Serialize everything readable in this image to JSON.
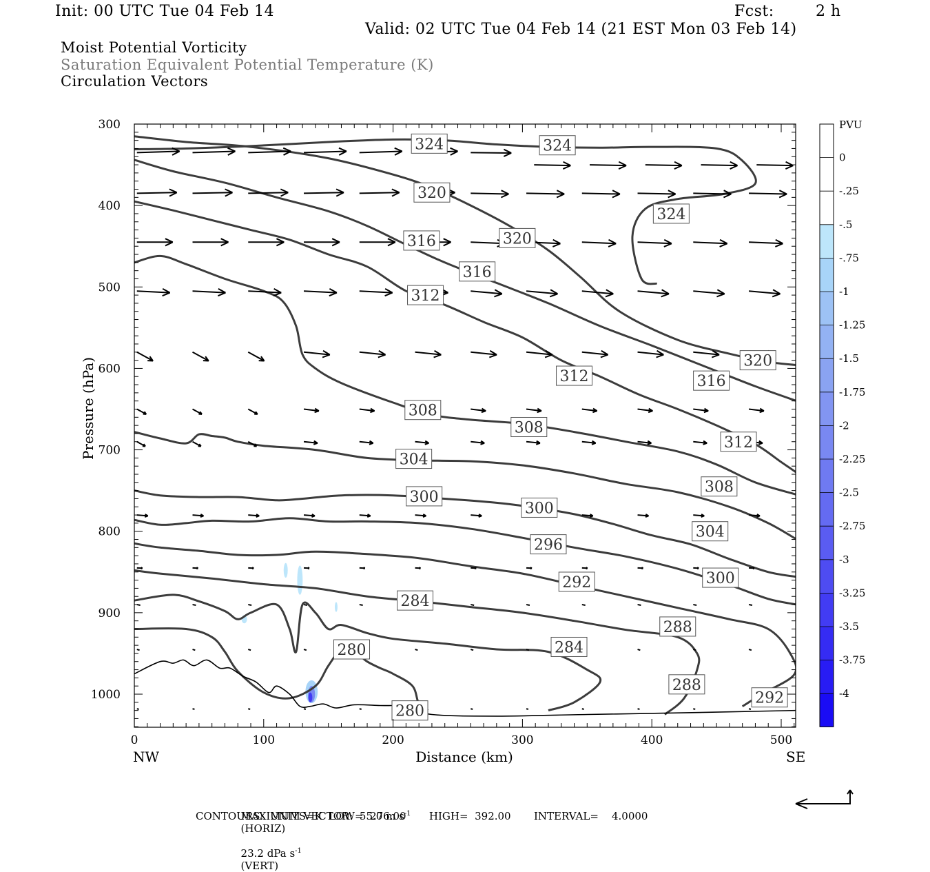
{
  "header": {
    "init": "Init: 00 UTC Tue 04 Feb 14",
    "fcst_label": "Fcst:",
    "fcst_value": "2 h",
    "valid": "Valid: 02 UTC Tue 04 Feb 14 (21 EST Mon 03 Feb 14)"
  },
  "titles": {
    "line1": "Moist Potential Vorticity",
    "line2": "Saturation Equivalent Potential Temperature (K)",
    "line3": "Circulation Vectors",
    "line2_color": "#7a7a7a"
  },
  "chart_data": {
    "type": "line",
    "xlabel": "Distance (km)",
    "ylabel": "Pressure (hPa)",
    "xlim": [
      0,
      512
    ],
    "ylim": [
      300,
      1040
    ],
    "y_inverted": true,
    "x_ticks": [
      0,
      100,
      200,
      300,
      400,
      500
    ],
    "y_ticks": [
      300,
      400,
      500,
      600,
      700,
      800,
      900,
      1000
    ],
    "x_end_labels": {
      "left": "NW",
      "right": "SE"
    },
    "contour_color": "#3c3c3c",
    "vector_color": "#000000",
    "contours": [
      {
        "label": "324",
        "points": [
          [
            0,
            331
          ],
          [
            40,
            330
          ],
          [
            90,
            327
          ],
          [
            150,
            322
          ],
          [
            200,
            319
          ],
          [
            240,
            320
          ],
          [
            280,
            325
          ],
          [
            320,
            328
          ],
          [
            360,
            329
          ],
          [
            400,
            328
          ],
          [
            450,
            330
          ],
          [
            470,
            345
          ],
          [
            480,
            373
          ],
          [
            455,
            386
          ],
          [
            420,
            392
          ],
          [
            395,
            404
          ],
          [
            385,
            438
          ],
          [
            392,
            490
          ],
          [
            404,
            496
          ]
        ],
        "labels_at": [
          [
            228,
            324
          ],
          [
            327,
            326
          ],
          [
            415,
            410
          ]
        ]
      },
      {
        "label": "320",
        "points": [
          [
            0,
            315
          ],
          [
            40,
            322
          ],
          [
            90,
            328
          ],
          [
            150,
            342
          ],
          [
            200,
            362
          ],
          [
            230,
            378
          ],
          [
            260,
            400
          ],
          [
            290,
            425
          ],
          [
            320,
            455
          ],
          [
            345,
            488
          ],
          [
            375,
            530
          ],
          [
            420,
            565
          ],
          [
            460,
            582
          ],
          [
            490,
            592
          ],
          [
            512,
            596
          ]
        ],
        "labels_at": [
          [
            230,
            384
          ],
          [
            296,
            440
          ],
          [
            482,
            590
          ]
        ]
      },
      {
        "label": "316",
        "points": [
          [
            0,
            344
          ],
          [
            30,
            358
          ],
          [
            70,
            372
          ],
          [
            110,
            390
          ],
          [
            150,
            407
          ],
          [
            180,
            425
          ],
          [
            210,
            448
          ],
          [
            240,
            470
          ],
          [
            280,
            495
          ],
          [
            320,
            520
          ],
          [
            360,
            548
          ],
          [
            400,
            572
          ],
          [
            440,
            597
          ],
          [
            480,
            622
          ],
          [
            512,
            640
          ]
        ],
        "labels_at": [
          [
            222,
            443
          ],
          [
            265,
            481
          ],
          [
            446,
            615
          ]
        ]
      },
      {
        "label": "312",
        "points": [
          [
            0,
            395
          ],
          [
            30,
            406
          ],
          [
            60,
            418
          ],
          [
            90,
            430
          ],
          [
            120,
            442
          ],
          [
            150,
            460
          ],
          [
            180,
            475
          ],
          [
            210,
            505
          ],
          [
            240,
            522
          ],
          [
            270,
            543
          ],
          [
            300,
            562
          ],
          [
            330,
            590
          ],
          [
            360,
            610
          ],
          [
            390,
            632
          ],
          [
            420,
            650
          ],
          [
            450,
            670
          ],
          [
            480,
            693
          ],
          [
            500,
            715
          ],
          [
            512,
            728
          ]
        ],
        "labels_at": [
          [
            225,
            510
          ],
          [
            340,
            609
          ],
          [
            467,
            690
          ]
        ]
      },
      {
        "label": "308",
        "points": [
          [
            0,
            470
          ],
          [
            20,
            462
          ],
          [
            40,
            472
          ],
          [
            70,
            490
          ],
          [
            100,
            505
          ],
          [
            115,
            518
          ],
          [
            125,
            548
          ],
          [
            130,
            583
          ],
          [
            140,
            600
          ],
          [
            160,
            618
          ],
          [
            200,
            642
          ],
          [
            230,
            657
          ],
          [
            260,
            663
          ],
          [
            300,
            668
          ],
          [
            340,
            678
          ],
          [
            380,
            690
          ],
          [
            420,
            702
          ],
          [
            450,
            718
          ],
          [
            480,
            740
          ],
          [
            512,
            755
          ]
        ],
        "labels_at": [
          [
            223,
            651
          ],
          [
            305,
            672
          ],
          [
            452,
            745
          ]
        ]
      },
      {
        "label": "304",
        "points": [
          [
            0,
            678
          ],
          [
            20,
            686
          ],
          [
            40,
            692
          ],
          [
            50,
            681
          ],
          [
            60,
            683
          ],
          [
            70,
            685
          ],
          [
            80,
            690
          ],
          [
            100,
            695
          ],
          [
            140,
            700
          ],
          [
            180,
            710
          ],
          [
            220,
            713
          ],
          [
            260,
            714
          ],
          [
            300,
            719
          ],
          [
            340,
            729
          ],
          [
            380,
            742
          ],
          [
            420,
            752
          ],
          [
            460,
            770
          ],
          [
            490,
            790
          ],
          [
            512,
            810
          ]
        ],
        "labels_at": [
          [
            216,
            711
          ],
          [
            445,
            800
          ]
        ]
      },
      {
        "label": "300",
        "points": [
          [
            0,
            750
          ],
          [
            20,
            756
          ],
          [
            50,
            758
          ],
          [
            80,
            758
          ],
          [
            110,
            762
          ],
          [
            130,
            760
          ],
          [
            160,
            756
          ],
          [
            200,
            756
          ],
          [
            240,
            760
          ],
          [
            280,
            765
          ],
          [
            310,
            771
          ],
          [
            340,
            779
          ],
          [
            370,
            791
          ],
          [
            400,
            805
          ],
          [
            430,
            816
          ],
          [
            460,
            834
          ],
          [
            490,
            850
          ],
          [
            512,
            856
          ]
        ],
        "labels_at": [
          [
            224,
            757
          ],
          [
            313,
            771
          ],
          [
            453,
            857
          ]
        ]
      },
      {
        "label": "296",
        "points": [
          [
            0,
            786
          ],
          [
            20,
            792
          ],
          [
            40,
            790
          ],
          [
            60,
            787
          ],
          [
            90,
            788
          ],
          [
            120,
            784
          ],
          [
            150,
            788
          ],
          [
            180,
            788
          ],
          [
            220,
            790
          ],
          [
            260,
            797
          ],
          [
            300,
            808
          ],
          [
            340,
            820
          ],
          [
            380,
            831
          ],
          [
            420,
            846
          ],
          [
            460,
            866
          ],
          [
            490,
            883
          ],
          [
            512,
            890
          ]
        ],
        "labels_at": [
          [
            320,
            816
          ]
        ]
      },
      {
        "label": "292",
        "points": [
          [
            0,
            815
          ],
          [
            20,
            820
          ],
          [
            50,
            824
          ],
          [
            80,
            829
          ],
          [
            110,
            829
          ],
          [
            140,
            825
          ],
          [
            180,
            828
          ],
          [
            220,
            833
          ],
          [
            260,
            843
          ],
          [
            300,
            852
          ],
          [
            340,
            866
          ],
          [
            380,
            880
          ],
          [
            420,
            894
          ],
          [
            460,
            908
          ],
          [
            490,
            920
          ],
          [
            507,
            950
          ],
          [
            510,
            976
          ],
          [
            485,
            1000
          ],
          [
            470,
            1015
          ]
        ],
        "labels_at": [
          [
            342,
            862
          ],
          [
            491,
            1004
          ]
        ]
      },
      {
        "label": "288",
        "points": [
          [
            0,
            848
          ],
          [
            20,
            852
          ],
          [
            60,
            858
          ],
          [
            100,
            865
          ],
          [
            140,
            870
          ],
          [
            180,
            880
          ],
          [
            220,
            886
          ],
          [
            260,
            893
          ],
          [
            300,
            900
          ],
          [
            340,
            910
          ],
          [
            380,
            921
          ],
          [
            420,
            930
          ],
          [
            435,
            950
          ],
          [
            435,
            970
          ],
          [
            425,
            1005
          ],
          [
            410,
            1025
          ]
        ],
        "labels_at": [
          [
            420,
            917
          ],
          [
            427,
            988
          ]
        ]
      },
      {
        "label": "284",
        "points": [
          [
            0,
            885
          ],
          [
            30,
            878
          ],
          [
            50,
            886
          ],
          [
            70,
            898
          ],
          [
            80,
            908
          ],
          [
            90,
            900
          ],
          [
            110,
            890
          ],
          [
            120,
            920
          ],
          [
            125,
            948
          ],
          [
            130,
            890
          ],
          [
            140,
            900
          ],
          [
            150,
            920
          ],
          [
            160,
            915
          ],
          [
            180,
            925
          ],
          [
            200,
            932
          ],
          [
            240,
            938
          ],
          [
            280,
            945
          ],
          [
            320,
            948
          ],
          [
            350,
            970
          ],
          [
            360,
            985
          ],
          [
            340,
            1010
          ],
          [
            320,
            1020
          ]
        ],
        "labels_at": [
          [
            217,
            885
          ],
          [
            336,
            942
          ]
        ]
      },
      {
        "label": "280",
        "points": [
          [
            0,
            920
          ],
          [
            40,
            920
          ],
          [
            60,
            930
          ],
          [
            70,
            948
          ],
          [
            80,
            972
          ],
          [
            100,
            998
          ],
          [
            120,
            1005
          ],
          [
            140,
            990
          ],
          [
            150,
            965
          ],
          [
            160,
            945
          ],
          [
            170,
            948
          ],
          [
            180,
            960
          ],
          [
            190,
            968
          ],
          [
            200,
            975
          ],
          [
            215,
            990
          ],
          [
            220,
            1012
          ],
          [
            227,
            1020
          ]
        ],
        "labels_at": [
          [
            168,
            945
          ],
          [
            213,
            1020
          ]
        ]
      }
    ],
    "terrain": {
      "label": "280",
      "points": [
        [
          0,
          975
        ],
        [
          20,
          960
        ],
        [
          30,
          962
        ],
        [
          38,
          958
        ],
        [
          46,
          965
        ],
        [
          56,
          958
        ],
        [
          66,
          968
        ],
        [
          74,
          968
        ],
        [
          84,
          978
        ],
        [
          94,
          985
        ],
        [
          104,
          998
        ],
        [
          110,
          990
        ],
        [
          120,
          1000
        ],
        [
          128,
          1015
        ],
        [
          136,
          1015
        ],
        [
          146,
          1012
        ],
        [
          156,
          1017
        ],
        [
          170,
          1013
        ],
        [
          190,
          1014
        ],
        [
          210,
          1015
        ],
        [
          230,
          1025
        ],
        [
          280,
          1027
        ],
        [
          350,
          1025
        ],
        [
          420,
          1023
        ],
        [
          512,
          1020
        ]
      ]
    },
    "vector_rows_hpa": [
      335,
      350,
      385,
      400,
      445,
      465,
      505,
      530,
      580,
      605,
      650,
      690,
      740,
      780,
      845,
      890,
      945,
      1010
    ],
    "mpv_cbar_label": "PVU",
    "mpv_levels": [
      "0",
      "-.25",
      "-.5",
      "-.75",
      "-1",
      "-1.25",
      "-1.5",
      "-1.75",
      "-2",
      "-2.25",
      "-2.5",
      "-2.75",
      "-3",
      "-3.25",
      "-3.5",
      "-3.75",
      "-4"
    ],
    "mpv_colors": [
      "#ffffff",
      "#ffffff",
      "#bde6fb",
      "#a8d4f8",
      "#9dc2f5",
      "#93b2f3",
      "#8aa3f2",
      "#8295f2",
      "#7988f2",
      "#6f7af2",
      "#646bf2",
      "#5a5cf2",
      "#4e4cf2",
      "#423cf3",
      "#352cf3",
      "#281cf4",
      "#1a0cf5"
    ]
  },
  "footer": {
    "max_vector": "MAXIMUM VECTOR:  55.0 m s",
    "max_vector_horiz": "(HORIZ)",
    "max_vector_vert": "23.2 dPa s",
    "max_vector_vert_tag": "(VERT)",
    "superscript": "-1",
    "contours": "CONTOURS:  UNITS=K  LOW=  276.00       HIGH=  392.00       INTERVAL=    4.0000"
  }
}
